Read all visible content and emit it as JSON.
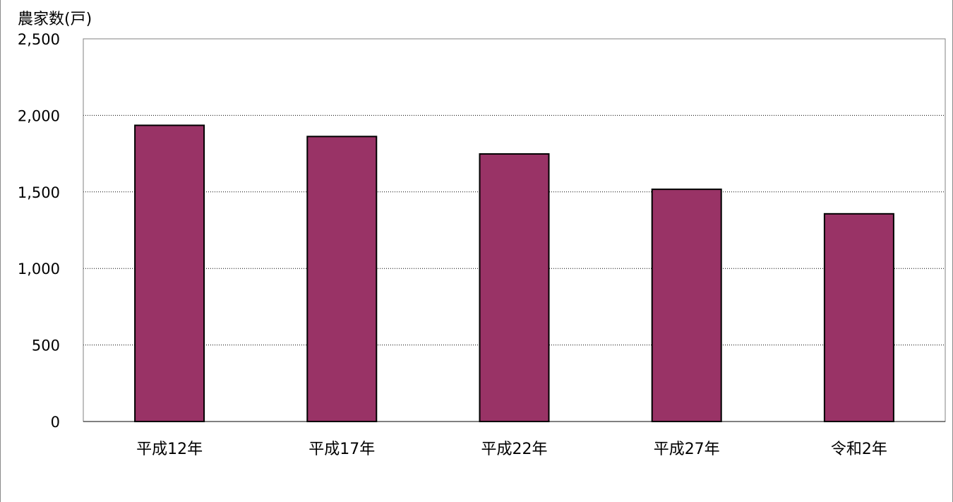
{
  "chart_data": {
    "type": "bar",
    "title": "",
    "xlabel": "",
    "ylabel": "農家数(戸)",
    "categories": [
      "平成12年",
      "平成17年",
      "平成22年",
      "平成27年",
      "令和2年"
    ],
    "values": [
      1935,
      1862,
      1748,
      1517,
      1357
    ],
    "ylim": [
      0,
      2500
    ],
    "yticks": [
      0,
      500,
      1000,
      1500,
      2000,
      2500
    ],
    "ytick_labels": [
      "0",
      "500",
      "1,000",
      "1,500",
      "2,000",
      "2,500"
    ],
    "grid": "horizontal dotted",
    "legend": "none",
    "colors": {
      "bar_fill": "#993366",
      "bar_stroke": "#000000",
      "plot_border": "#808080",
      "grid": "#000000",
      "frame": "#8a8a8a"
    }
  }
}
